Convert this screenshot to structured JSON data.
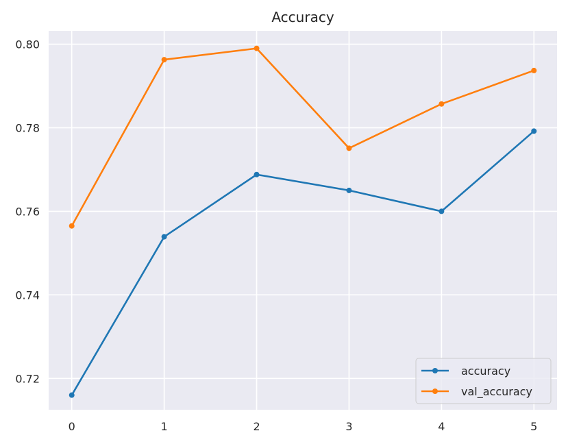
{
  "chart_data": {
    "type": "line",
    "title": "Accuracy",
    "xlabel": "",
    "ylabel": "",
    "x": [
      0,
      1,
      2,
      3,
      4,
      5
    ],
    "xlim": [
      -0.25,
      5.25
    ],
    "ylim": [
      0.7125,
      0.8032
    ],
    "xticks": [
      0,
      1,
      2,
      3,
      4,
      5
    ],
    "yticks": [
      0.72,
      0.74,
      0.76,
      0.78,
      0.8
    ],
    "ytick_labels": [
      "0.72",
      "0.74",
      "0.76",
      "0.78",
      "0.80"
    ],
    "grid": true,
    "legend_position": "lower right",
    "background": "#eaeaf2",
    "series": [
      {
        "name": "accuracy",
        "color": "#1f77b4",
        "marker": "circle",
        "values": [
          0.716,
          0.7539,
          0.7688,
          0.765,
          0.76,
          0.7792
        ]
      },
      {
        "name": "val_accuracy",
        "color": "#ff7f0e",
        "marker": "circle",
        "values": [
          0.7565,
          0.7963,
          0.799,
          0.7751,
          0.7857,
          0.7937
        ]
      }
    ]
  }
}
